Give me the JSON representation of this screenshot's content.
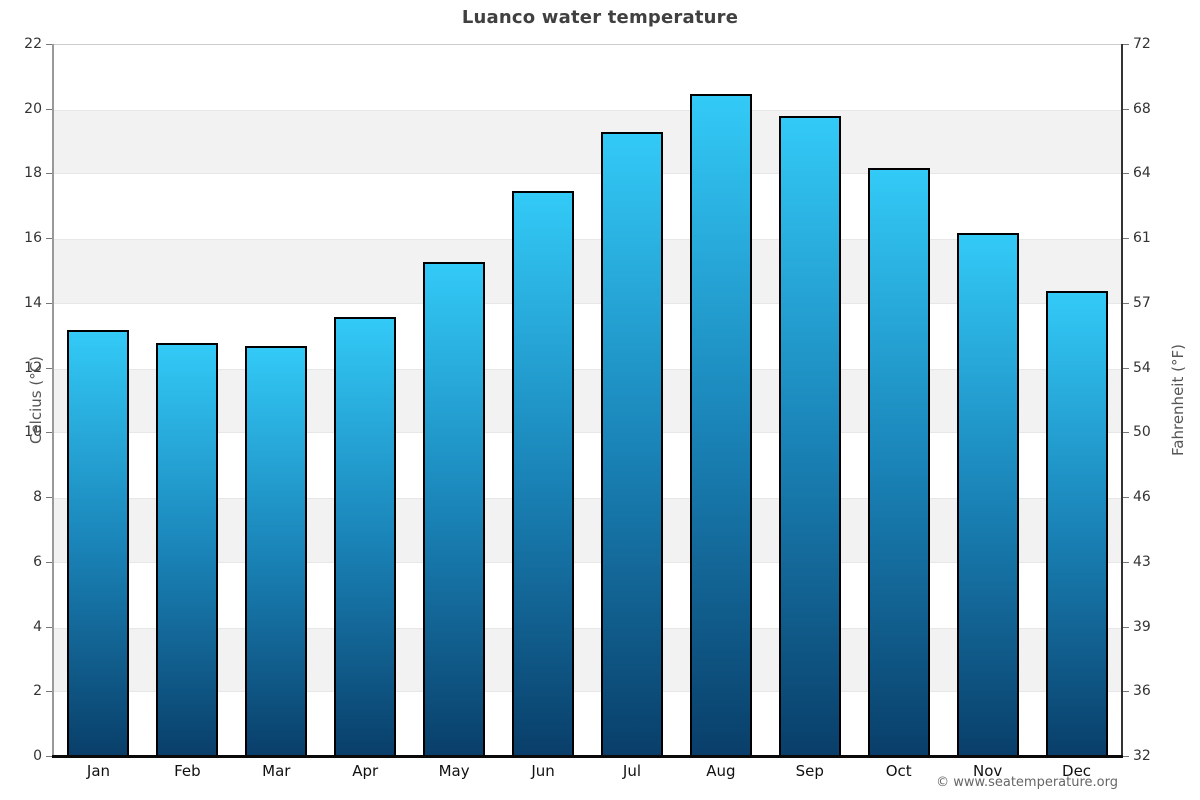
{
  "chart_data": {
    "type": "bar",
    "title": "Luanco water temperature",
    "categories": [
      "Jan",
      "Feb",
      "Mar",
      "Apr",
      "May",
      "Jun",
      "Jul",
      "Aug",
      "Sep",
      "Oct",
      "Nov",
      "Dec"
    ],
    "values": [
      13.2,
      12.8,
      12.7,
      13.6,
      15.3,
      17.5,
      19.3,
      20.5,
      19.8,
      18.2,
      16.2,
      14.4
    ],
    "ylabel_left": "Celcius (°C)",
    "ylabel_right": "Fahrenheit (°F)",
    "ylim_c": [
      0,
      22
    ],
    "yticks_c": [
      0,
      2,
      4,
      6,
      8,
      10,
      12,
      14,
      16,
      18,
      20,
      22
    ],
    "yticks_f": [
      32,
      36,
      39,
      43,
      46,
      50,
      54,
      57,
      61,
      64,
      68,
      72
    ],
    "gray_band_starts_c": [
      2,
      6,
      10,
      14,
      18
    ],
    "grid": "banded",
    "legend": "none",
    "credit": "© www.seatemperature.org",
    "colors": {
      "bar_top": "#33caf7",
      "bar_mid": "#1a84b8",
      "bar_bottom": "#093e69",
      "bar_border": "#000000",
      "band_gray": "#f2f2f2",
      "title_text": "#404040",
      "axis_left_line": "#999999",
      "axis_right_line": "#333333",
      "baseline": "#0a0a0a"
    }
  }
}
